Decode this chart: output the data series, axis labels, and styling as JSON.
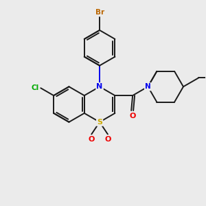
{
  "bg_color": "#ebebeb",
  "bond_color": "#1a1a1a",
  "atom_colors": {
    "N": "#0000ee",
    "S": "#ccaa00",
    "O": "#ee0000",
    "Cl": "#00aa00",
    "Br": "#bb6600"
  },
  "figsize": [
    3.0,
    3.0
  ],
  "dpi": 100
}
